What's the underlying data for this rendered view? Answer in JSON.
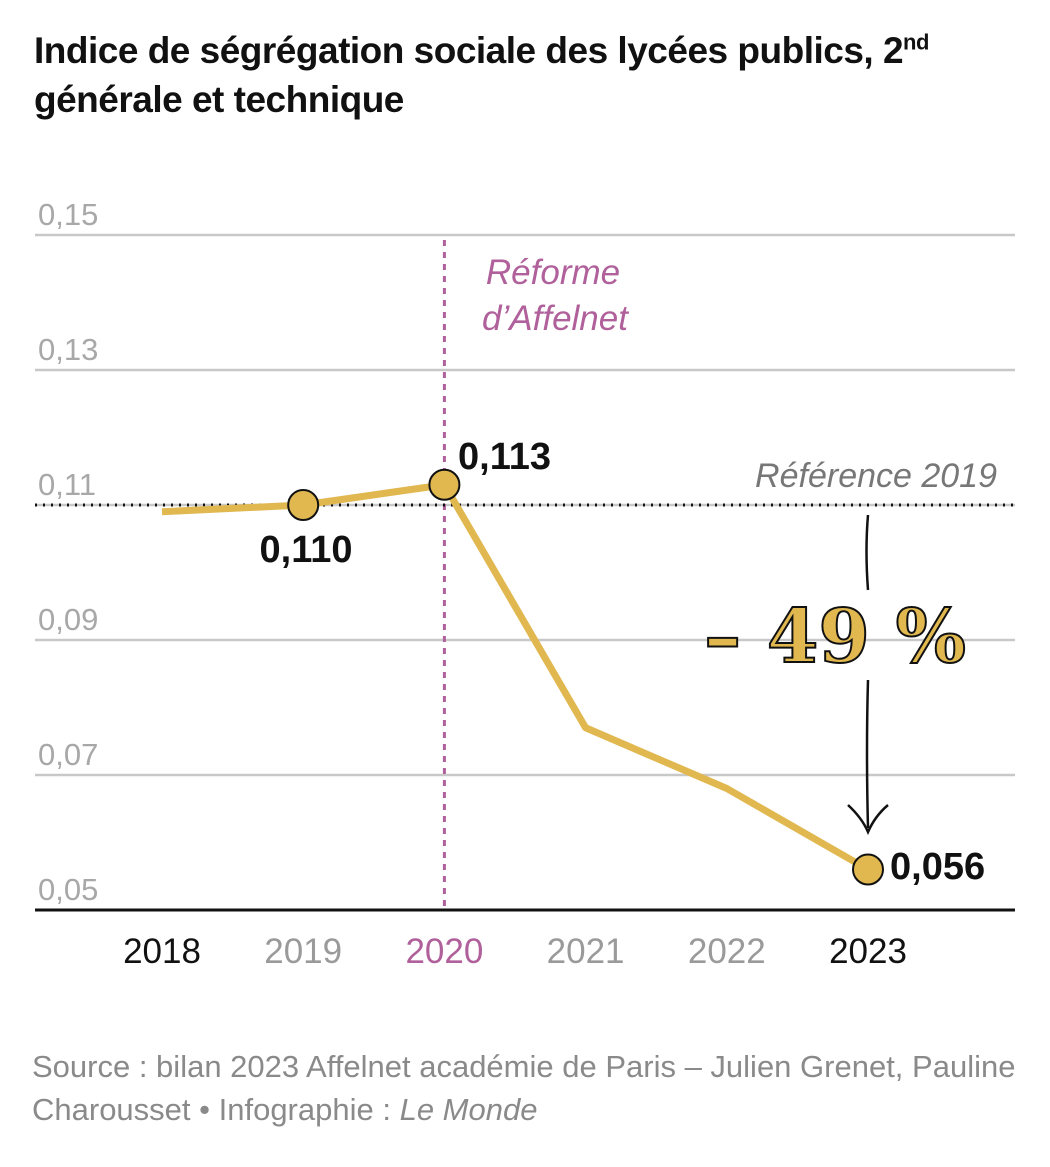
{
  "title": {
    "text_before_sup": "Indice de ségrégation sociale des lycées publics, 2",
    "sup": "nd",
    "text_after_sup": " générale et technique"
  },
  "chart_data": {
    "type": "line",
    "title": "Indice de ségrégation sociale des lycées publics, 2nd générale et technique",
    "categories": [
      "2018",
      "2019",
      "2020",
      "2021",
      "2022",
      "2023"
    ],
    "series": [
      {
        "values": [
          0.109,
          0.11,
          0.113,
          0.077,
          0.068,
          0.056
        ],
        "color": "#e0b84f"
      }
    ],
    "data_labels": [
      {
        "category": "2019",
        "text": "0,110"
      },
      {
        "category": "2020",
        "text": "0,113"
      },
      {
        "category": "2023",
        "text": "0,056"
      }
    ],
    "marked_points": [
      "2019",
      "2020",
      "2023"
    ],
    "ylim": [
      0.05,
      0.15
    ],
    "yticks": [
      0.15,
      0.13,
      0.11,
      0.09,
      0.07,
      0.05
    ],
    "ytick_labels": [
      "0,15",
      "0,13",
      "0,11",
      "0,09",
      "0,07",
      "0,05"
    ],
    "xtick_colors": [
      "#111111",
      "#9a9a9a",
      "#b0609a",
      "#9a9a9a",
      "#9a9a9a",
      "#111111"
    ],
    "grid": true,
    "reference_line": {
      "value": 0.11,
      "label": "Référence 2019",
      "style": "dotted",
      "color": "#111111"
    },
    "event_line": {
      "category": "2020",
      "label_line1": "Réforme",
      "label_line2": "d’Affelnet",
      "color": "#b0609a",
      "style": "dashed"
    },
    "change_annotation": {
      "text": "– 49 %",
      "color": "#e0b84f"
    },
    "xlabel": "",
    "ylabel": ""
  },
  "source": {
    "text": "Source : bilan 2023 Affelnet académie de Paris – Julien Grenet, Pauline Charousset • Infographie : ",
    "credit": "Le Monde"
  }
}
